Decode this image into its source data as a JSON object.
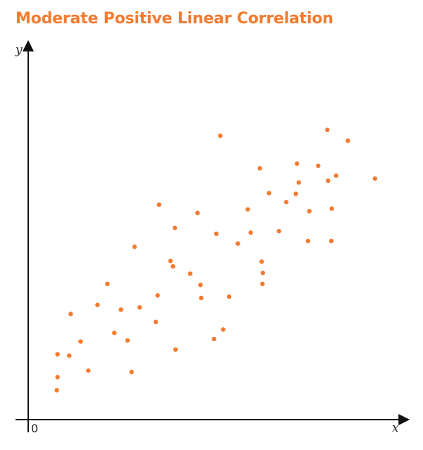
{
  "chart_data": {
    "type": "scatter",
    "title": "Moderate Positive Linear Correlation",
    "xlabel": "x",
    "ylabel": "y",
    "origin_label": "0",
    "xlim": [
      0,
      100
    ],
    "ylim": [
      0,
      100
    ],
    "grid": false,
    "point_color": "#f47b30",
    "axis_color": "#111111",
    "points": [
      [
        7.8,
        8.1
      ],
      [
        8.0,
        11.7
      ],
      [
        8.0,
        18.0
      ],
      [
        11.2,
        17.6
      ],
      [
        11.6,
        29.1
      ],
      [
        14.3,
        21.5
      ],
      [
        16.4,
        13.5
      ],
      [
        18.9,
        31.6
      ],
      [
        21.6,
        37.4
      ],
      [
        23.5,
        23.9
      ],
      [
        25.3,
        30.3
      ],
      [
        27.1,
        21.8
      ],
      [
        28.2,
        13.1
      ],
      [
        29.0,
        47.6
      ],
      [
        30.4,
        30.9
      ],
      [
        34.8,
        26.9
      ],
      [
        35.3,
        34.2
      ],
      [
        35.7,
        59.2
      ],
      [
        38.8,
        43.7
      ],
      [
        39.5,
        42.2
      ],
      [
        40.0,
        52.8
      ],
      [
        40.2,
        19.3
      ],
      [
        44.2,
        40.2
      ],
      [
        46.2,
        56.9
      ],
      [
        47.0,
        37.1
      ],
      [
        47.2,
        33.5
      ],
      [
        50.7,
        22.2
      ],
      [
        51.3,
        51.2
      ],
      [
        52.4,
        78.2
      ],
      [
        53.2,
        24.8
      ],
      [
        54.8,
        33.9
      ],
      [
        57.2,
        48.5
      ],
      [
        59.9,
        57.9
      ],
      [
        60.7,
        51.5
      ],
      [
        63.2,
        69.2
      ],
      [
        63.7,
        43.5
      ],
      [
        64.0,
        40.4
      ],
      [
        63.9,
        37.4
      ],
      [
        65.7,
        62.4
      ],
      [
        68.4,
        51.9
      ],
      [
        70.4,
        59.9
      ],
      [
        73.0,
        62.2
      ],
      [
        73.3,
        70.5
      ],
      [
        73.8,
        65.3
      ],
      [
        76.3,
        49.2
      ],
      [
        76.7,
        57.4
      ],
      [
        79.1,
        69.9
      ],
      [
        81.6,
        79.8
      ],
      [
        81.8,
        65.8
      ],
      [
        82.7,
        49.2
      ],
      [
        82.8,
        58.1
      ],
      [
        84.0,
        67.2
      ],
      [
        87.2,
        76.8
      ],
      [
        94.6,
        66.4
      ]
    ]
  }
}
